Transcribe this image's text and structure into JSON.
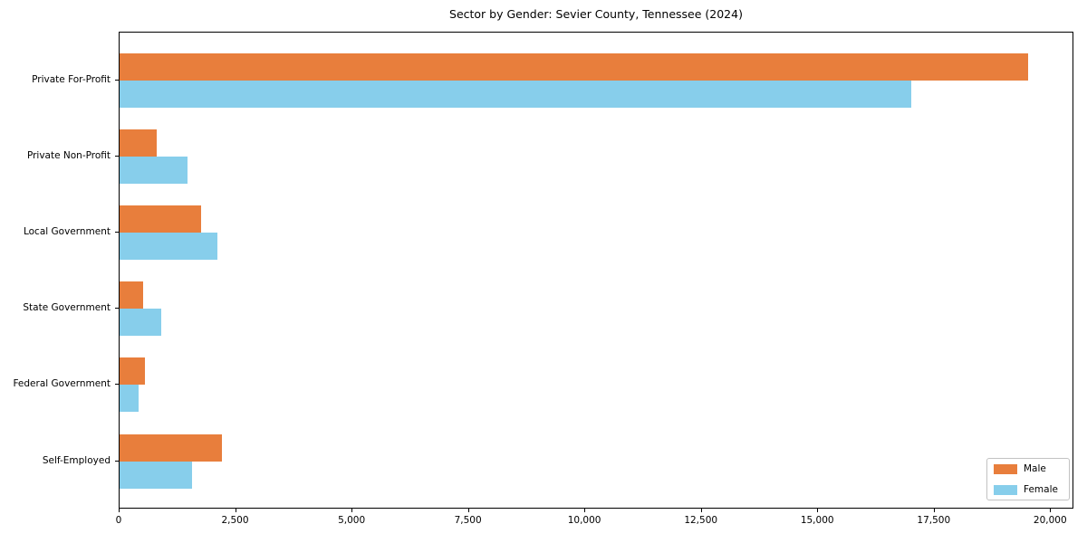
{
  "chart_data": {
    "type": "bar",
    "orientation": "horizontal",
    "title": "Sector by Gender: Sevier County, Tennessee (2024)",
    "categories": [
      "Private For-Profit",
      "Private Non-Profit",
      "Local Government",
      "State Government",
      "Federal Government",
      "Self-Employed"
    ],
    "series": [
      {
        "name": "Male",
        "color": "#e87e3c",
        "values": [
          19500,
          800,
          1750,
          500,
          550,
          2200
        ]
      },
      {
        "name": "Female",
        "color": "#87ceeb",
        "values": [
          17000,
          1450,
          2100,
          900,
          400,
          1550
        ]
      }
    ],
    "xlabel": "",
    "ylabel": "",
    "xlim": [
      0,
      20500
    ],
    "x_tick_values": [
      0,
      2500,
      5000,
      7500,
      10000,
      12500,
      15000,
      17500,
      20000
    ],
    "x_tick_labels": [
      "0",
      "2,500",
      "5,000",
      "7,500",
      "10,000",
      "12,500",
      "15,000",
      "17,500",
      "20,000"
    ],
    "grid": false,
    "legend_position": "lower right"
  }
}
